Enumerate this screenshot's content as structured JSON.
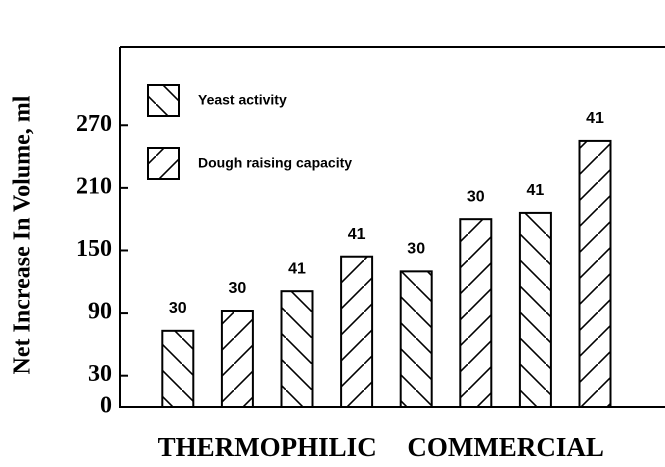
{
  "chart_data": {
    "type": "bar",
    "ylabel": "Net Increase In Volume, ml",
    "categories": [
      null,
      null,
      null,
      null,
      null,
      null,
      null,
      null
    ],
    "series": [
      {
        "name": "Yeast activity",
        "color": "#000000",
        "pattern": "backslash",
        "values": [
          73,
          null,
          111,
          null,
          130,
          null,
          186,
          null
        ]
      },
      {
        "name": "Dough raising capacity",
        "color": "#000000",
        "pattern": "slash",
        "values": [
          null,
          92,
          null,
          144,
          null,
          180,
          null,
          255
        ]
      }
    ],
    "bar_labels": [
      "30",
      "30",
      "41",
      "41",
      "30",
      "30",
      "41",
      "41"
    ],
    "x_groups": [
      "THERMOPHILIC",
      "COMMERCIAL"
    ],
    "ylim": [
      0,
      345
    ],
    "yticks": [
      0,
      30,
      90,
      150,
      210,
      270
    ],
    "grid": false,
    "legend": "upper left"
  }
}
